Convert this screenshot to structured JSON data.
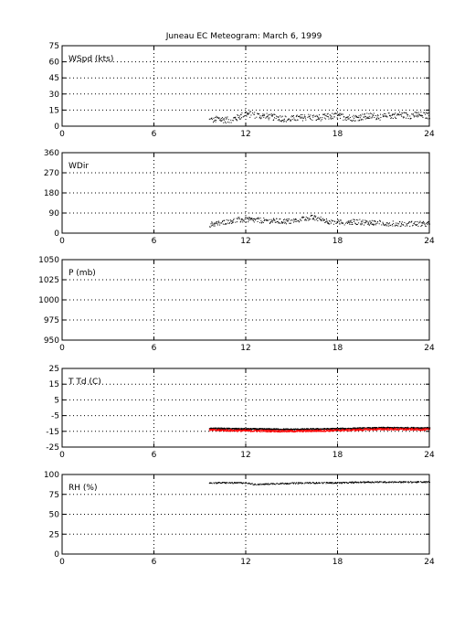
{
  "title": "Juneau EC Meteogram:     March  6, 1999",
  "chart_data": [
    {
      "type": "scatter",
      "label": "WSpd (kts)",
      "xlim": [
        0,
        24
      ],
      "ylim": [
        0,
        75
      ],
      "xticks": [
        0,
        6,
        12,
        18,
        24
      ],
      "yticks": [
        0,
        15,
        30,
        45,
        60,
        75
      ],
      "grid": true,
      "series": [
        {
          "color": "#000000",
          "start": 9.6,
          "end": 24,
          "values": [
            [
              9.6,
              6
            ],
            [
              10.2,
              7
            ],
            [
              10.8,
              6
            ],
            [
              11.4,
              8
            ],
            [
              12.0,
              12
            ],
            [
              12.4,
              11
            ],
            [
              13.0,
              10
            ],
            [
              13.6,
              9
            ],
            [
              14.2,
              8
            ],
            [
              14.8,
              7
            ],
            [
              15.4,
              8
            ],
            [
              16.0,
              9
            ],
            [
              16.6,
              8
            ],
            [
              17.2,
              9
            ],
            [
              17.8,
              10
            ],
            [
              18.4,
              9
            ],
            [
              19.0,
              8
            ],
            [
              19.6,
              9
            ],
            [
              20.2,
              10
            ],
            [
              20.8,
              9
            ],
            [
              21.4,
              10
            ],
            [
              22.0,
              11
            ],
            [
              22.6,
              10
            ],
            [
              23.2,
              11
            ],
            [
              24.0,
              10
            ]
          ],
          "spread": 3
        }
      ]
    },
    {
      "type": "scatter",
      "label": "WDir",
      "xlim": [
        0,
        24
      ],
      "ylim": [
        0,
        360
      ],
      "xticks": [
        0,
        6,
        12,
        18,
        24
      ],
      "yticks": [
        0,
        90,
        180,
        270,
        360
      ],
      "grid": true,
      "series": [
        {
          "color": "#000000",
          "start": 9.6,
          "end": 24,
          "values": [
            [
              9.6,
              40
            ],
            [
              10.2,
              45
            ],
            [
              10.8,
              55
            ],
            [
              11.4,
              60
            ],
            [
              12.0,
              62
            ],
            [
              12.6,
              60
            ],
            [
              13.2,
              58
            ],
            [
              13.8,
              56
            ],
            [
              14.4,
              55
            ],
            [
              15.0,
              54
            ],
            [
              15.6,
              65
            ],
            [
              16.2,
              72
            ],
            [
              16.8,
              65
            ],
            [
              17.4,
              55
            ],
            [
              18.0,
              52
            ],
            [
              18.6,
              50
            ],
            [
              19.2,
              52
            ],
            [
              19.8,
              50
            ],
            [
              20.4,
              48
            ],
            [
              21.0,
              47
            ],
            [
              21.6,
              45
            ],
            [
              22.2,
              44
            ],
            [
              22.8,
              44
            ],
            [
              23.4,
              43
            ],
            [
              24.0,
              42
            ]
          ],
          "spread": 12
        }
      ]
    },
    {
      "type": "line",
      "label": "P (mb)",
      "xlim": [
        0,
        24
      ],
      "ylim": [
        950,
        1050
      ],
      "xticks": [
        0,
        6,
        12,
        18,
        24
      ],
      "yticks": [
        950,
        975,
        1000,
        1025,
        1050
      ],
      "grid": true,
      "series": []
    },
    {
      "type": "line",
      "label": "T Td (C)",
      "xlim": [
        0,
        24
      ],
      "ylim": [
        -25,
        25
      ],
      "xticks": [
        0,
        6,
        12,
        18,
        24
      ],
      "yticks": [
        -25,
        -15,
        -5,
        5,
        15,
        25
      ],
      "grid": true,
      "series": [
        {
          "color": "#000000",
          "start": 9.6,
          "end": 24,
          "values": [
            [
              9.6,
              -13.2
            ],
            [
              12.0,
              -13.5
            ],
            [
              15.0,
              -13.8
            ],
            [
              18.0,
              -13.4
            ],
            [
              21.0,
              -12.8
            ],
            [
              24.0,
              -12.9
            ]
          ],
          "spread": 0.4
        },
        {
          "color": "#ff0000",
          "start": 9.6,
          "end": 24,
          "values": [
            [
              9.6,
              -14.2
            ],
            [
              12.0,
              -14.6
            ],
            [
              15.0,
              -14.9
            ],
            [
              18.0,
              -14.4
            ],
            [
              21.0,
              -13.6
            ],
            [
              24.0,
              -13.9
            ]
          ],
          "spread": 0.6
        }
      ]
    },
    {
      "type": "scatter",
      "label": "RH (%)",
      "xlim": [
        0,
        24
      ],
      "ylim": [
        0,
        100
      ],
      "xticks": [
        0,
        6,
        12,
        18,
        24
      ],
      "yticks": [
        0,
        25,
        50,
        75,
        100
      ],
      "grid": true,
      "series": [
        {
          "color": "#000000",
          "start": 9.6,
          "end": 24,
          "values": [
            [
              9.6,
              90
            ],
            [
              12.0,
              90
            ],
            [
              12.6,
              88
            ],
            [
              14.0,
              89
            ],
            [
              16.0,
              90
            ],
            [
              18.0,
              90
            ],
            [
              20.0,
              91
            ],
            [
              22.0,
              91
            ],
            [
              24.0,
              91
            ]
          ],
          "spread": 0.8
        }
      ]
    }
  ]
}
